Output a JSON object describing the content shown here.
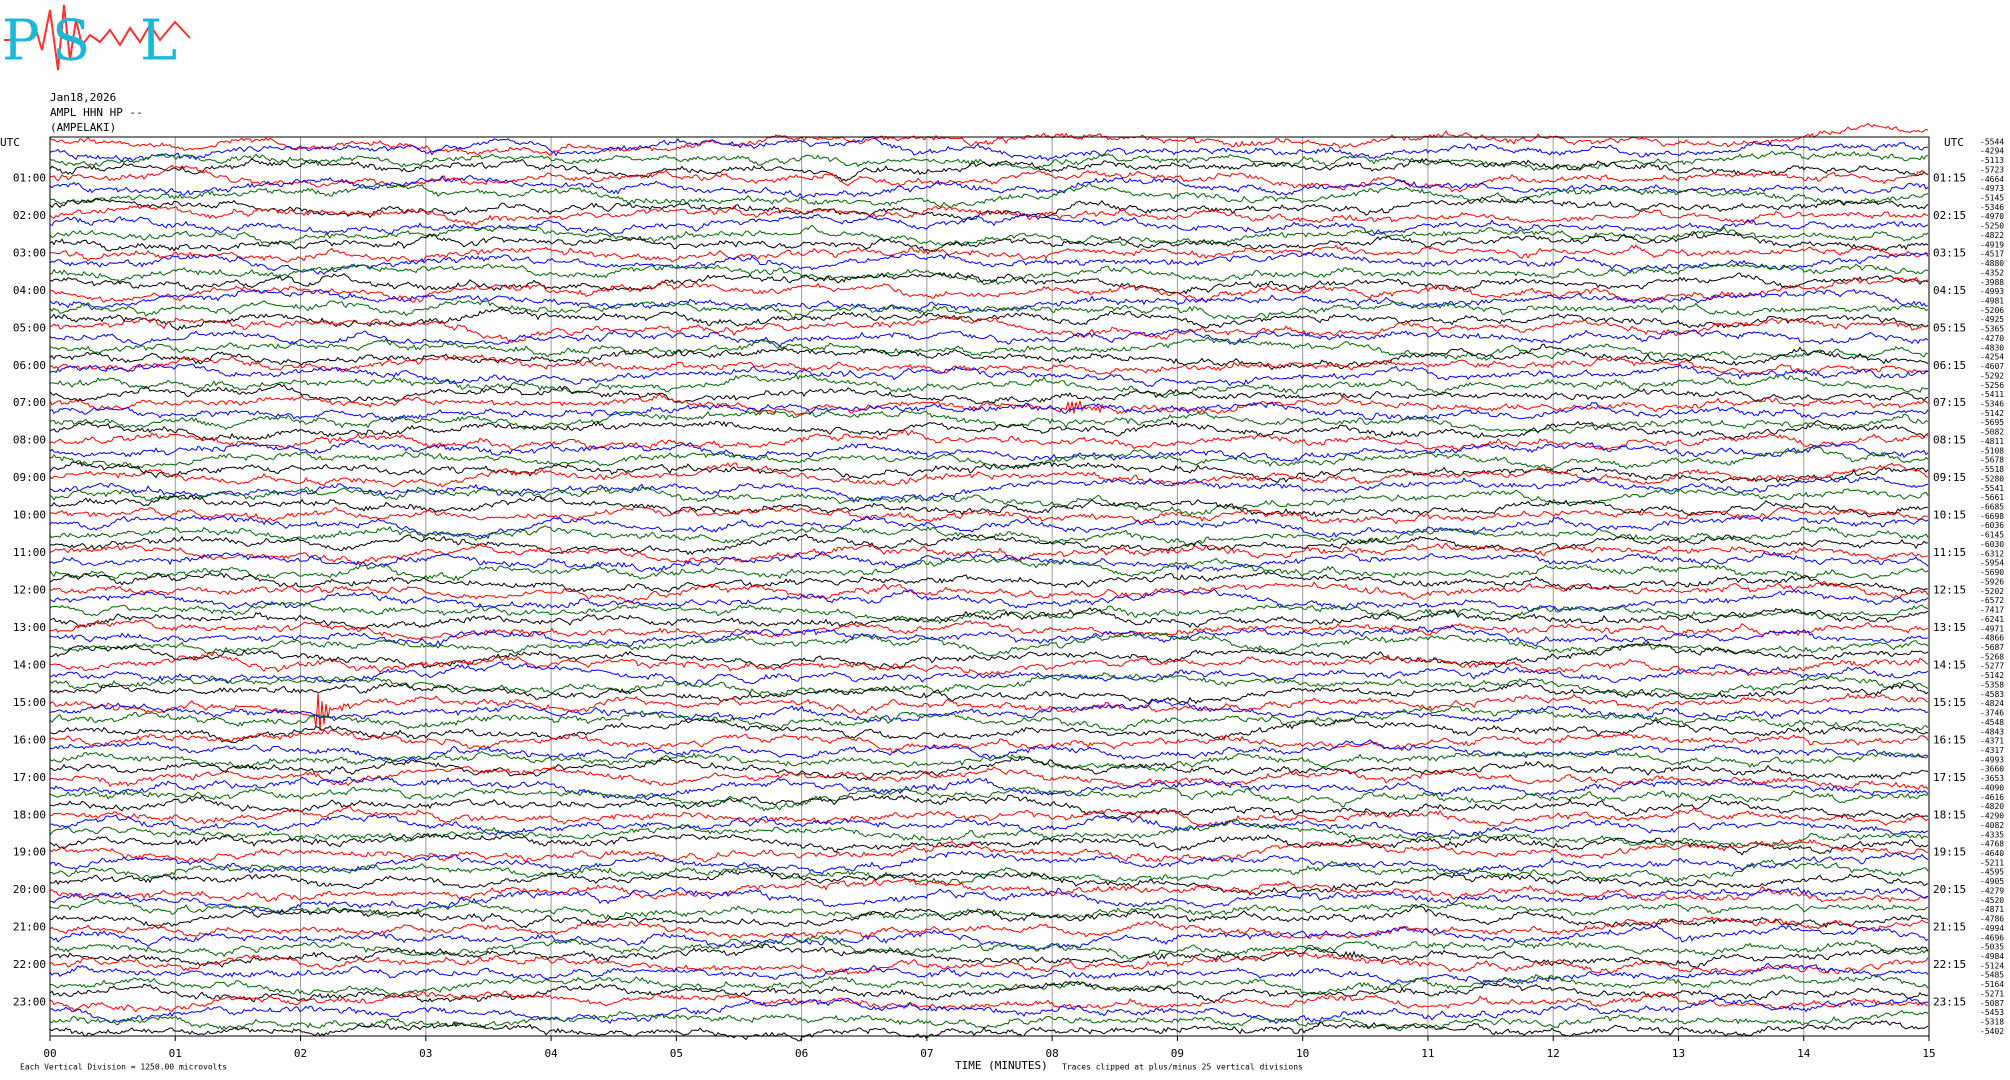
{
  "logo": [
    "P",
    "S",
    "L"
  ],
  "chart_data": {
    "type": "helicorder",
    "header": [
      "Jan18,2026",
      "AMPL HHN HP --",
      "(AMPELAKI)"
    ],
    "left_axis_title": "UTC",
    "right_axis_title": "UTC",
    "hour_labels_left": [
      "01:00",
      "02:00",
      "03:00",
      "04:00",
      "05:00",
      "06:00",
      "07:00",
      "08:00",
      "09:00",
      "10:00",
      "11:00",
      "12:00",
      "13:00",
      "14:00",
      "15:00",
      "16:00",
      "17:00",
      "18:00",
      "19:00",
      "20:00",
      "21:00",
      "22:00",
      "23:00"
    ],
    "hour_labels_right": [
      "01:15",
      "02:15",
      "03:15",
      "04:15",
      "05:15",
      "06:15",
      "07:15",
      "08:15",
      "09:15",
      "10:15",
      "11:15",
      "12:15",
      "13:15",
      "14:15",
      "15:15",
      "16:15",
      "17:15",
      "18:15",
      "19:15",
      "20:15",
      "21:15",
      "22:15",
      "23:15"
    ],
    "trace_offsets": [
      -5544,
      -4294,
      -5113,
      -5723,
      -4664,
      -4973,
      -5145,
      -5346,
      -4970,
      -5250,
      -4822,
      -4919,
      -4517,
      -4880,
      -4352,
      -3988,
      -4993,
      -4981,
      -5206,
      -4925,
      -5365,
      -4270,
      -4830,
      -4254,
      -4607,
      -5292,
      -5256,
      -5411,
      -5346,
      -5142,
      -5695,
      -5082,
      -4811,
      -5108,
      -5678,
      -5518,
      -5280,
      -5541,
      -5661,
      -6685,
      -6698,
      -6036,
      -6145,
      -6030,
      -6312,
      -5954,
      -5690,
      -5926,
      -5202,
      -6572,
      -7417,
      -6241,
      -4971,
      -4866,
      -5687,
      -5268,
      -5277,
      -5142,
      -5358,
      -4583,
      -4824,
      -3746,
      -4548,
      -4843,
      -4371,
      -4317,
      -4993,
      -3660,
      -3653,
      -4090,
      -4616,
      -4820,
      -4290,
      -4082,
      -4335,
      -4768,
      -4640,
      -5211,
      -4595,
      -4905,
      -4279,
      -4520,
      -4871,
      -4786,
      -4994,
      -4696,
      -5035,
      -4984,
      -5124,
      -5485,
      -5164,
      -5271,
      -5087,
      -5453,
      -5318,
      -5402
    ],
    "colors": [
      "#ff0000",
      "#0000ff",
      "#006400",
      "#000000"
    ],
    "xlim": [
      0,
      15
    ],
    "xticks": [
      {
        "value": 0,
        "label": "00"
      },
      {
        "value": 1,
        "label": "01"
      },
      {
        "value": 2,
        "label": "02"
      },
      {
        "value": 3,
        "label": "03"
      },
      {
        "value": 4,
        "label": "04"
      },
      {
        "value": 5,
        "label": "05"
      },
      {
        "value": 6,
        "label": "06"
      },
      {
        "value": 7,
        "label": "07"
      },
      {
        "value": 8,
        "label": "08"
      },
      {
        "value": 9,
        "label": "09"
      },
      {
        "value": 10,
        "label": "10"
      },
      {
        "value": 11,
        "label": "11"
      },
      {
        "value": 12,
        "label": "12"
      },
      {
        "value": 13,
        "label": "13"
      },
      {
        "value": 14,
        "label": "14"
      },
      {
        "value": 15,
        "label": "15"
      }
    ],
    "xlabel": "TIME (MINUTES)",
    "scale_note": "Each Vertical Division = 1250.00 microvolts",
    "clip_note": "Traces clipped at plus/minus 25 vertical divisions",
    "grid": true
  }
}
